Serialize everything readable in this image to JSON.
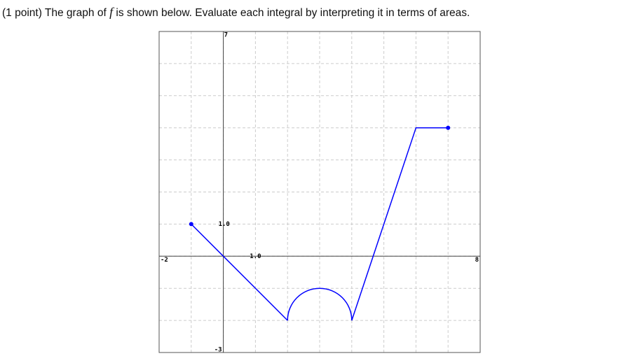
{
  "prompt": {
    "lead": "(1 point) The graph of",
    "symbol": "f",
    "rest": "is shown below. Evaluate each integral by interpreting it in terms of areas."
  },
  "graph": {
    "xlim": [
      -2,
      8
    ],
    "ylim": [
      -3,
      7
    ],
    "grid_step": 1,
    "xtick": {
      "value": 1,
      "label": "1.0"
    },
    "ytick": {
      "value": 1,
      "label": "1.0"
    },
    "color": "#0000ff",
    "segments": [
      {
        "type": "line",
        "points": [
          [
            -1,
            1
          ],
          [
            0,
            0
          ],
          [
            2,
            -2
          ]
        ]
      },
      {
        "type": "arc",
        "center": [
          3,
          -2
        ],
        "radius": 1
      },
      {
        "type": "line",
        "points": [
          [
            4,
            -2
          ],
          [
            6,
            4
          ],
          [
            7,
            4
          ]
        ]
      }
    ],
    "endpoints": [
      [
        -1,
        1
      ],
      [
        7,
        4
      ]
    ]
  }
}
